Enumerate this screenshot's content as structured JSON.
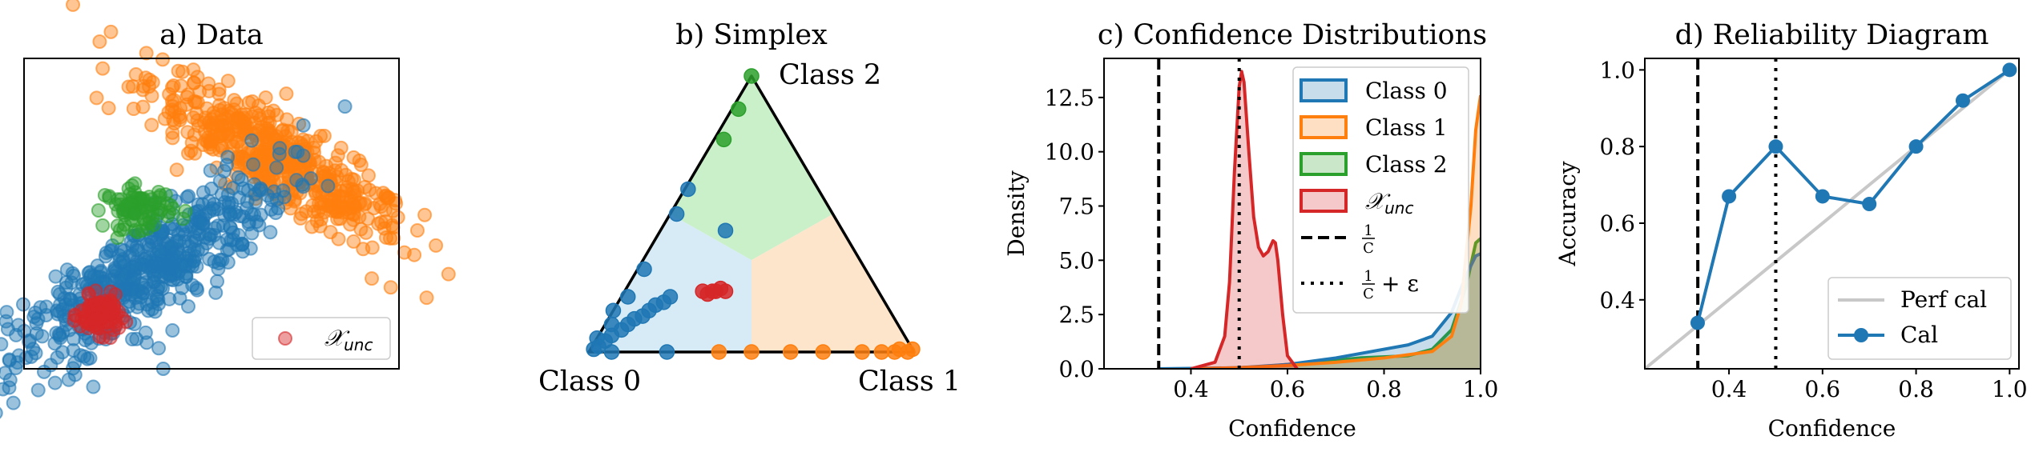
{
  "chart_data": [
    {
      "panel": "a",
      "type": "scatter",
      "title": "a) Data",
      "xlabel": "",
      "ylabel": "",
      "ticks": "none",
      "legend": {
        "placement": "bottom-right",
        "label": "𝒳",
        "label_sub": "unc"
      },
      "series": [
        {
          "color": "#ff7f0e",
          "center": [
            1.6,
            2.6
          ],
          "spread": [
            1.25,
            0.32
          ],
          "tilt": -0.38,
          "count": 520,
          "extra_points": [
            [
              -1.4,
              3.7
            ],
            [
              2.6,
              1.2
            ],
            [
              3.15,
              0.5
            ],
            [
              0.2,
              4.2
            ]
          ]
        },
        {
          "color": "#1f77b4",
          "center": [
            -0.6,
            0.6
          ],
          "spread": [
            1.4,
            0.38
          ],
          "tilt": 0.42,
          "count": 560,
          "extra_points": [
            [
              -2.45,
              -0.75
            ],
            [
              -2.05,
              -0.9
            ],
            [
              -2.0,
              -0.55
            ]
          ]
        },
        {
          "color": "#2ca02c",
          "center": [
            -0.7,
            1.75
          ],
          "spread": [
            0.28,
            0.18
          ],
          "tilt": 0.0,
          "count": 90
        },
        {
          "color": "#d62728",
          "center": [
            -1.35,
            -0.15
          ],
          "spread": [
            0.16,
            0.16
          ],
          "tilt": 0.0,
          "count": 120
        }
      ],
      "xlim": [
        -2.6,
        3.6
      ],
      "ylim": [
        -1.1,
        4.4
      ]
    },
    {
      "panel": "b",
      "type": "scatter",
      "title": "b) Simplex",
      "vertex_labels": [
        "Class 0",
        "Class 1",
        "Class 2"
      ],
      "region_colors": [
        "#d6ebf5",
        "#fde5cc",
        "#c9f0c9"
      ],
      "series": [
        {
          "name": "Class 0",
          "color": "#1f77b4",
          "points_probs": [
            [
              0.98,
              0.01,
              0.01
            ],
            [
              0.96,
              0.02,
              0.02
            ],
            [
              0.93,
              0.03,
              0.04
            ],
            [
              0.9,
              0.04,
              0.06
            ],
            [
              0.86,
              0.06,
              0.08
            ],
            [
              0.83,
              0.07,
              0.1
            ],
            [
              0.8,
              0.08,
              0.12
            ],
            [
              0.77,
              0.1,
              0.13
            ],
            [
              0.74,
              0.11,
              0.15
            ],
            [
              0.71,
              0.12,
              0.17
            ],
            [
              0.68,
              0.14,
              0.18
            ],
            [
              0.65,
              0.15,
              0.2
            ],
            [
              0.88,
              0.02,
              0.1
            ],
            [
              0.78,
              0.02,
              0.2
            ],
            [
              0.68,
              0.02,
              0.3
            ],
            [
              0.48,
              0.02,
              0.5
            ],
            [
              0.4,
              0.01,
              0.59
            ],
            [
              0.36,
              0.2,
              0.44
            ],
            [
              0.76,
              0.24,
              0.0
            ],
            [
              0.93,
              0.07,
              0.0
            ],
            [
              0.95,
              0.0,
              0.05
            ],
            [
              0.85,
              0.0,
              0.15
            ]
          ]
        },
        {
          "name": "Class 1",
          "color": "#ff7f0e",
          "points_probs": [
            [
              0.02,
              0.98,
              0.0
            ],
            [
              0.06,
              0.94,
              0.0
            ],
            [
              0.1,
              0.9,
              0.0
            ],
            [
              0.16,
              0.84,
              0.0
            ],
            [
              0.28,
              0.72,
              0.0
            ],
            [
              0.38,
              0.62,
              0.0
            ],
            [
              0.5,
              0.5,
              0.0
            ],
            [
              0.6,
              0.4,
              0.0
            ],
            [
              0.0,
              0.99,
              0.01
            ],
            [
              0.04,
              0.95,
              0.01
            ]
          ]
        },
        {
          "name": "Class 2",
          "color": "#2ca02c",
          "points_probs": [
            [
              0.0,
              0.0,
              1.0
            ],
            [
              0.1,
              0.02,
              0.88
            ],
            [
              0.2,
              0.03,
              0.77
            ]
          ]
        },
        {
          "name": "𝒳unc",
          "color": "#d62728",
          "points_probs": [
            [
              0.54,
              0.24,
              0.22
            ],
            [
              0.53,
              0.26,
              0.21
            ],
            [
              0.51,
              0.27,
              0.22
            ],
            [
              0.5,
              0.28,
              0.22
            ],
            [
              0.48,
              0.29,
              0.23
            ],
            [
              0.47,
              0.31,
              0.22
            ]
          ]
        }
      ]
    },
    {
      "panel": "c",
      "type": "area",
      "title": "c) Confidence Distributions",
      "xlabel": "Confidence",
      "ylabel": "Density",
      "xlim": [
        0.22,
        1.0
      ],
      "ylim": [
        0,
        14.3
      ],
      "xticks": [
        "0.4",
        "0.6",
        "0.8",
        "1.0"
      ],
      "yticks": [
        "0.0",
        "2.5",
        "5.0",
        "7.5",
        "10.0",
        "12.5"
      ],
      "series": [
        {
          "name": "Class 0",
          "color": "#1f77b4",
          "x": [
            0.33,
            0.4,
            0.5,
            0.6,
            0.7,
            0.8,
            0.85,
            0.9,
            0.94,
            0.97,
            0.99,
            1.0
          ],
          "y": [
            0,
            0.02,
            0.05,
            0.2,
            0.5,
            0.9,
            1.1,
            1.5,
            2.6,
            4.3,
            5.2,
            5.3
          ]
        },
        {
          "name": "Class 1",
          "color": "#ff7f0e",
          "x": [
            0.4,
            0.5,
            0.6,
            0.7,
            0.8,
            0.9,
            0.94,
            0.96,
            0.98,
            0.99,
            1.0
          ],
          "y": [
            0,
            0.05,
            0.15,
            0.3,
            0.5,
            0.8,
            1.5,
            3.0,
            7.5,
            11.0,
            12.6
          ]
        },
        {
          "name": "Class 2",
          "color": "#2ca02c",
          "x": [
            0.45,
            0.55,
            0.65,
            0.75,
            0.85,
            0.9,
            0.94,
            0.97,
            0.99,
            1.0
          ],
          "y": [
            0,
            0.1,
            0.3,
            0.5,
            0.6,
            0.9,
            1.8,
            3.8,
            5.8,
            6.0
          ]
        },
        {
          "name": "𝒳",
          "name_sub": "unc",
          "color": "#d62728",
          "x": [
            0.4,
            0.45,
            0.47,
            0.48,
            0.49,
            0.5,
            0.505,
            0.51,
            0.52,
            0.53,
            0.54,
            0.55,
            0.56,
            0.57,
            0.575,
            0.58,
            0.59,
            0.6,
            0.62
          ],
          "y": [
            0,
            0.3,
            1.5,
            4.0,
            9.0,
            13.0,
            13.7,
            13.2,
            10.0,
            7.0,
            5.6,
            5.2,
            5.4,
            5.9,
            5.8,
            5.0,
            2.5,
            0.6,
            0
          ]
        }
      ],
      "reference_lines": [
        {
          "x": 0.3333,
          "style": "dashed",
          "label": "1/C"
        },
        {
          "x": 0.5,
          "style": "dotted",
          "label": "1/C + ε"
        }
      ],
      "legend": {
        "placement": "top-right",
        "entries": [
          "Class 0",
          "Class 1",
          "Class 2",
          "𝒳unc",
          "1/C",
          "1/C + ε"
        ]
      }
    },
    {
      "panel": "d",
      "type": "line",
      "title": "d) Reliability Diagram",
      "xlabel": "Confidence",
      "ylabel": "Accuracy",
      "xlim": [
        0.22,
        1.02
      ],
      "ylim": [
        0.22,
        1.03
      ],
      "xticks": [
        "0.4",
        "0.6",
        "0.8",
        "1.0"
      ],
      "yticks": [
        "0.4",
        "0.6",
        "0.8",
        "1.0"
      ],
      "series": [
        {
          "name": "Perf cal",
          "color": "#c8c8c8",
          "x": [
            0.22,
            1.0
          ],
          "y": [
            0.22,
            1.0
          ]
        },
        {
          "name": "Cal",
          "color": "#1f77b4",
          "x": [
            0.333,
            0.4,
            0.5,
            0.6,
            0.7,
            0.8,
            0.9,
            1.0
          ],
          "y": [
            0.34,
            0.67,
            0.8,
            0.67,
            0.65,
            0.8,
            0.92,
            1.0
          ]
        }
      ],
      "reference_lines": [
        {
          "x": 0.3333,
          "style": "dashed"
        },
        {
          "x": 0.5,
          "style": "dotted"
        }
      ],
      "legend": {
        "placement": "bottom-right",
        "entries": [
          "Perf cal",
          "Cal"
        ]
      }
    }
  ]
}
